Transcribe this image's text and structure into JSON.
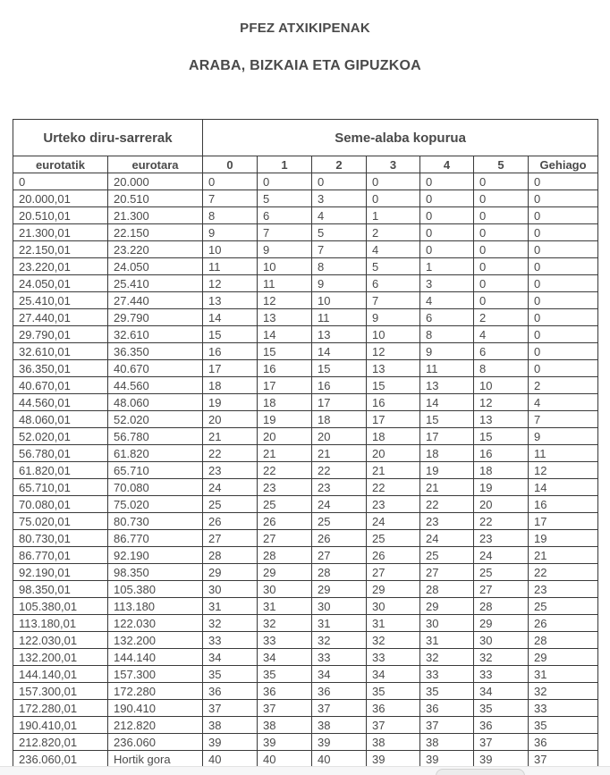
{
  "page": {
    "title": "PFEZ ATXIKIPENAK",
    "subtitle": "ARABA, BIZKAIA ETA GIPUZKOA"
  },
  "table": {
    "group_headers": [
      {
        "label": "Urteko diru-sarrerak",
        "colspan": 2
      },
      {
        "label": "Seme-alaba kopurua",
        "colspan": 7
      }
    ],
    "columns": [
      "eurotatik",
      "eurotara",
      "0",
      "1",
      "2",
      "3",
      "4",
      "5",
      "Gehiago"
    ],
    "rows": [
      [
        "0",
        "20.000",
        "0",
        "0",
        "0",
        "0",
        "0",
        "0",
        "0"
      ],
      [
        "20.000,01",
        "20.510",
        "7",
        "5",
        "3",
        "0",
        "0",
        "0",
        "0"
      ],
      [
        "20.510,01",
        "21.300",
        "8",
        "6",
        "4",
        "1",
        "0",
        "0",
        "0"
      ],
      [
        "21.300,01",
        "22.150",
        "9",
        "7",
        "5",
        "2",
        "0",
        "0",
        "0"
      ],
      [
        "22.150,01",
        "23.220",
        "10",
        "9",
        "7",
        "4",
        "0",
        "0",
        "0"
      ],
      [
        "23.220,01",
        "24.050",
        "11",
        "10",
        "8",
        "5",
        "1",
        "0",
        "0"
      ],
      [
        "24.050,01",
        "25.410",
        "12",
        "11",
        "9",
        "6",
        "3",
        "0",
        "0"
      ],
      [
        "25.410,01",
        "27.440",
        "13",
        "12",
        "10",
        "7",
        "4",
        "0",
        "0"
      ],
      [
        "27.440,01",
        "29.790",
        "14",
        "13",
        "11",
        "9",
        "6",
        "2",
        "0"
      ],
      [
        "29.790,01",
        "32.610",
        "15",
        "14",
        "13",
        "10",
        "8",
        "4",
        "0"
      ],
      [
        "32.610,01",
        "36.350",
        "16",
        "15",
        "14",
        "12",
        "9",
        "6",
        "0"
      ],
      [
        "36.350,01",
        "40.670",
        "17",
        "16",
        "15",
        "13",
        "11",
        "8",
        "0"
      ],
      [
        "40.670,01",
        "44.560",
        "18",
        "17",
        "16",
        "15",
        "13",
        "10",
        "2"
      ],
      [
        "44.560,01",
        "48.060",
        "19",
        "18",
        "17",
        "16",
        "14",
        "12",
        "4"
      ],
      [
        "48.060,01",
        "52.020",
        "20",
        "19",
        "18",
        "17",
        "15",
        "13",
        "7"
      ],
      [
        "52.020,01",
        "56.780",
        "21",
        "20",
        "20",
        "18",
        "17",
        "15",
        "9"
      ],
      [
        "56.780,01",
        "61.820",
        "22",
        "21",
        "21",
        "20",
        "18",
        "16",
        "11"
      ],
      [
        "61.820,01",
        "65.710",
        "23",
        "22",
        "22",
        "21",
        "19",
        "18",
        "12"
      ],
      [
        "65.710,01",
        "70.080",
        "24",
        "23",
        "23",
        "22",
        "21",
        "19",
        "14"
      ],
      [
        "70.080,01",
        "75.020",
        "25",
        "25",
        "24",
        "23",
        "22",
        "20",
        "16"
      ],
      [
        "75.020,01",
        "80.730",
        "26",
        "26",
        "25",
        "24",
        "23",
        "22",
        "17"
      ],
      [
        "80.730,01",
        "86.770",
        "27",
        "27",
        "26",
        "25",
        "24",
        "23",
        "19"
      ],
      [
        "86.770,01",
        "92.190",
        "28",
        "28",
        "27",
        "26",
        "25",
        "24",
        "21"
      ],
      [
        "92.190,01",
        "98.350",
        "29",
        "29",
        "28",
        "27",
        "27",
        "25",
        "22"
      ],
      [
        "98.350,01",
        "105.380",
        "30",
        "30",
        "29",
        "29",
        "28",
        "27",
        "23"
      ],
      [
        "105.380,01",
        "113.180",
        "31",
        "31",
        "30",
        "30",
        "29",
        "28",
        "25"
      ],
      [
        "113.180,01",
        "122.030",
        "32",
        "32",
        "31",
        "31",
        "30",
        "29",
        "26"
      ],
      [
        "122.030,01",
        "132.200",
        "33",
        "33",
        "32",
        "32",
        "31",
        "30",
        "28"
      ],
      [
        "132.200,01",
        "144.140",
        "34",
        "34",
        "33",
        "33",
        "32",
        "32",
        "29"
      ],
      [
        "144.140,01",
        "157.300",
        "35",
        "35",
        "34",
        "34",
        "33",
        "33",
        "31"
      ],
      [
        "157.300,01",
        "172.280",
        "36",
        "36",
        "36",
        "35",
        "35",
        "34",
        "32"
      ],
      [
        "172.280,01",
        "190.410",
        "37",
        "37",
        "37",
        "36",
        "36",
        "35",
        "33"
      ],
      [
        "190.410,01",
        "212.820",
        "38",
        "38",
        "38",
        "37",
        "37",
        "36",
        "35"
      ],
      [
        "212.820,01",
        "236.060",
        "39",
        "39",
        "39",
        "38",
        "38",
        "37",
        "36"
      ],
      [
        "236.060,01",
        "Hortik gora",
        "40",
        "40",
        "40",
        "39",
        "39",
        "39",
        "37"
      ]
    ]
  },
  "colors": {
    "text": "#4a4a4a",
    "table_border": "#3a3a3a",
    "bottom_strip_bg": "#f6f6f7",
    "bottom_pill_bg": "#ececec"
  }
}
